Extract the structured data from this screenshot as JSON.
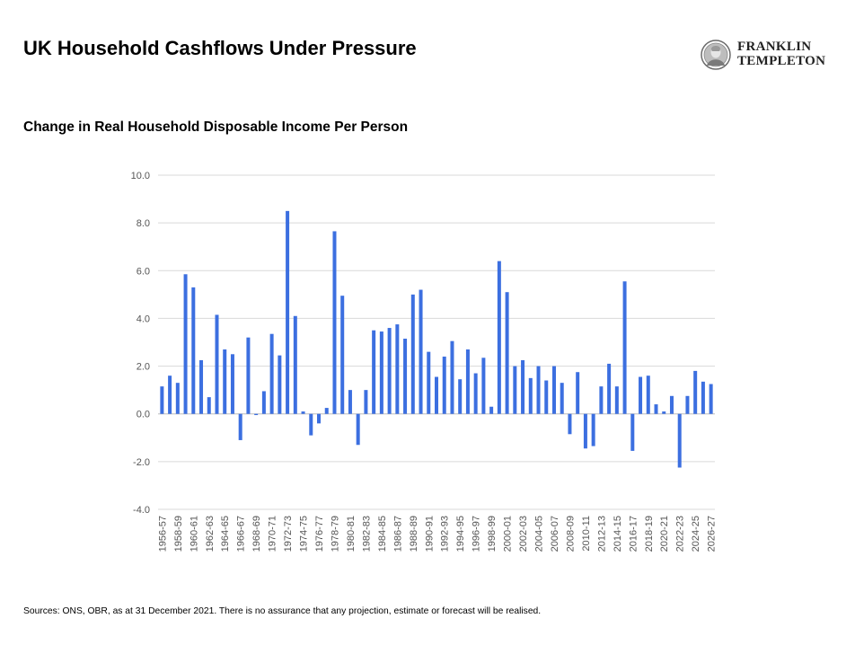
{
  "page": {
    "title": "UK Household Cashflows Under Pressure",
    "subtitle": "Change in Real Household Disposable Income Per Person",
    "source": "Sources: ONS, OBR, as at 31 December 2021. There is no assurance that any projection, estimate or forecast will be realised.",
    "logo": {
      "line1": "FRANKLIN",
      "line2": "TEMPLETON"
    }
  },
  "chart_data": {
    "type": "bar",
    "title": "",
    "xlabel": "",
    "ylabel": "",
    "ylim": [
      -4,
      10
    ],
    "yticks": [
      10,
      8,
      6,
      4,
      2,
      0,
      -2,
      -4
    ],
    "ytick_labels": [
      "10.0",
      "8.0",
      "6.0",
      "4.0",
      "2.0",
      "0.0",
      "-2.0",
      "-4.0"
    ],
    "grid": true,
    "legend": "none",
    "bar_color": "#3c6fe0",
    "grid_color": "#d9d9d9",
    "categories": [
      "1956-57",
      "1957-58",
      "1958-59",
      "1959-60",
      "1960-61",
      "1961-62",
      "1962-63",
      "1963-64",
      "1964-65",
      "1965-66",
      "1966-67",
      "1967-68",
      "1968-69",
      "1969-70",
      "1970-71",
      "1971-72",
      "1972-73",
      "1973-74",
      "1974-75",
      "1975-76",
      "1976-77",
      "1977-78",
      "1978-79",
      "1979-80",
      "1980-81",
      "1981-82",
      "1982-83",
      "1983-84",
      "1984-85",
      "1985-86",
      "1986-87",
      "1987-88",
      "1988-89",
      "1989-90",
      "1990-91",
      "1991-92",
      "1992-93",
      "1993-94",
      "1994-95",
      "1995-96",
      "1996-97",
      "1997-98",
      "1998-99",
      "1999-00",
      "2000-01",
      "2001-02",
      "2002-03",
      "2003-04",
      "2004-05",
      "2005-06",
      "2006-07",
      "2007-08",
      "2008-09",
      "2009-10",
      "2010-11",
      "2011-12",
      "2012-13",
      "2013-14",
      "2014-15",
      "2015-16",
      "2016-17",
      "2017-18",
      "2018-19",
      "2019-20",
      "2020-21",
      "2021-22",
      "2022-23",
      "2023-24",
      "2024-25",
      "2025-26",
      "2026-27"
    ],
    "xtick_labels": [
      "1956-57",
      "1958-59",
      "1960-61",
      "1962-63",
      "1964-65",
      "1966-67",
      "1968-69",
      "1970-71",
      "1972-73",
      "1974-75",
      "1976-77",
      "1978-79",
      "1980-81",
      "1982-83",
      "1984-85",
      "1986-87",
      "1988-89",
      "1990-91",
      "1992-93",
      "1994-95",
      "1996-97",
      "1998-99",
      "2000-01",
      "2002-03",
      "2004-05",
      "2006-07",
      "2008-09",
      "2010-11",
      "2012-13",
      "2014-15",
      "2016-17",
      "2018-19",
      "2020-21",
      "2022-23",
      "2024-25",
      "2026-27"
    ],
    "values": [
      1.15,
      1.6,
      1.3,
      5.85,
      5.3,
      2.25,
      0.7,
      4.15,
      2.7,
      2.5,
      -1.1,
      3.2,
      -0.05,
      0.95,
      3.35,
      2.45,
      8.5,
      4.1,
      0.1,
      -0.9,
      -0.4,
      0.25,
      7.65,
      4.95,
      1.0,
      -1.3,
      1.0,
      3.5,
      3.45,
      3.6,
      3.75,
      3.15,
      5.0,
      5.2,
      2.6,
      1.55,
      2.4,
      3.05,
      1.45,
      2.7,
      1.7,
      2.35,
      0.3,
      6.4,
      5.1,
      2.0,
      2.25,
      1.5,
      2.0,
      1.4,
      2.0,
      1.3,
      -0.85,
      1.75,
      -1.45,
      -1.35,
      1.15,
      2.1,
      1.15,
      5.55,
      -1.55,
      1.55,
      1.6,
      0.4,
      0.1,
      0.75,
      -2.25,
      0.75,
      1.8,
      1.35,
      1.25
    ]
  }
}
